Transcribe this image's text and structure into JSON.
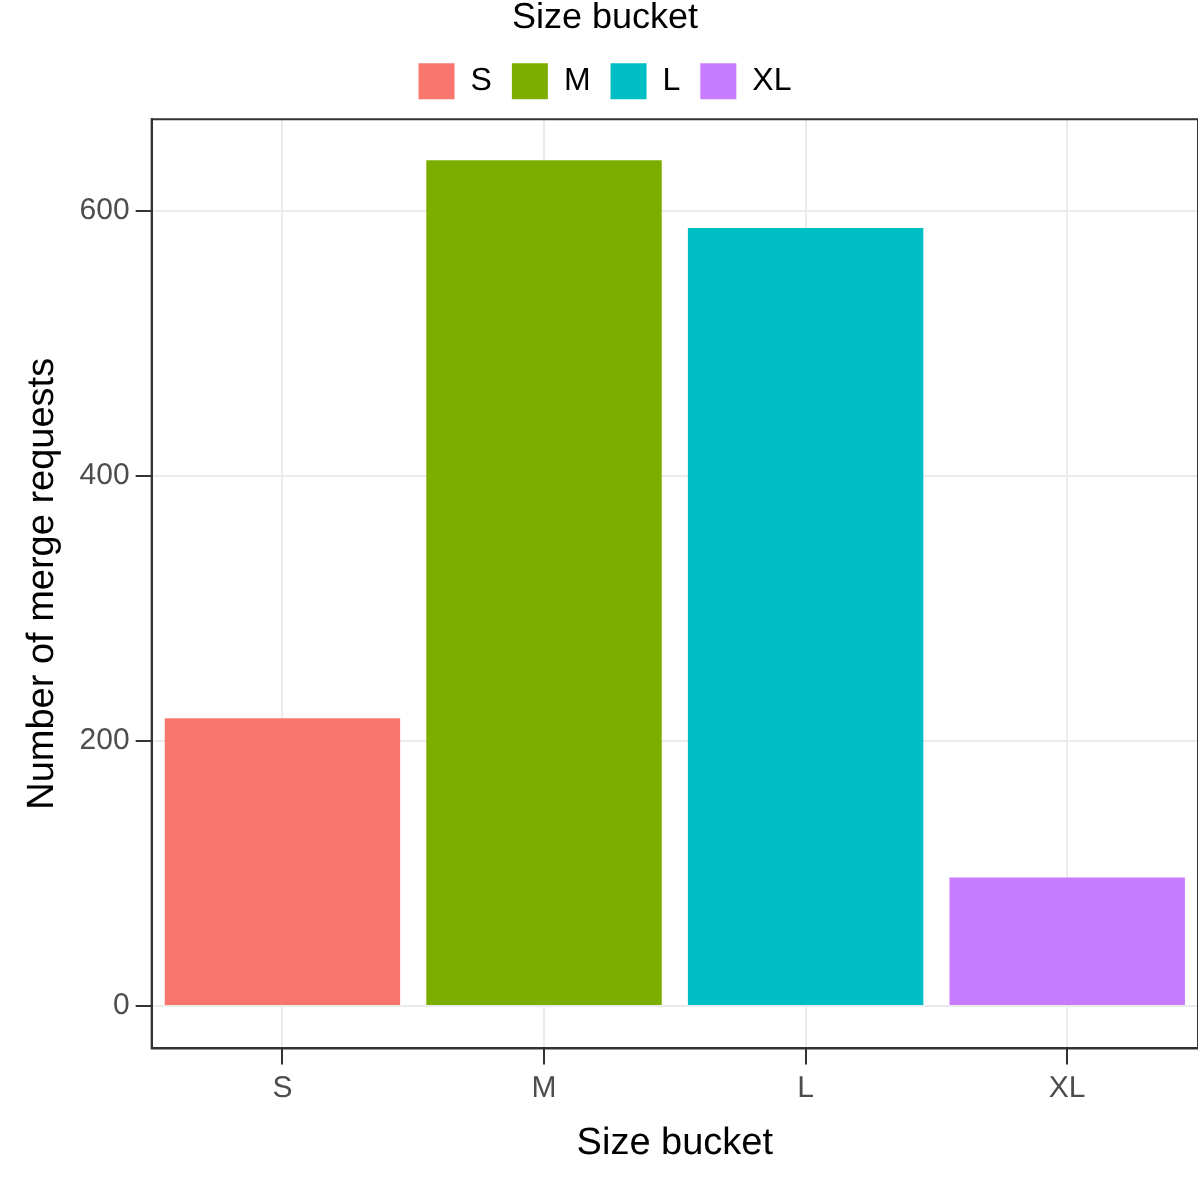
{
  "chart_data": {
    "type": "bar",
    "xlabel": "Size bucket",
    "ylabel": "Number of merge requests",
    "legend_title": "Size bucket",
    "categories": [
      "S",
      "M",
      "L",
      "XL"
    ],
    "series": [
      {
        "name": "S",
        "color": "#f8766d",
        "values": [
          217,
          null,
          null,
          null
        ]
      },
      {
        "name": "M",
        "color": "#7cae00",
        "values": [
          null,
          638,
          null,
          null
        ]
      },
      {
        "name": "L",
        "color": "#00bfc4",
        "values": [
          null,
          null,
          587,
          null
        ]
      },
      {
        "name": "XL",
        "color": "#c77cff",
        "values": [
          null,
          null,
          null,
          97
        ]
      }
    ],
    "ylim": [
      -32,
      669
    ],
    "yticks": [
      0,
      200,
      400,
      600
    ],
    "grid": true,
    "legend": "top"
  }
}
